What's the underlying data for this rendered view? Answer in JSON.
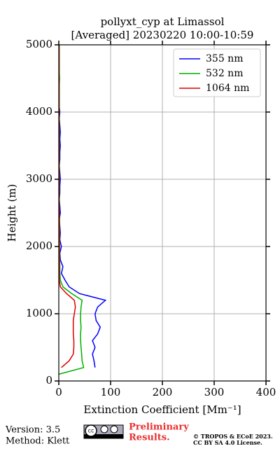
{
  "chart_data": {
    "type": "line",
    "title": "pollyxt_cyp at Limassol",
    "subtitle": "[Averaged] 20230220 10:00-10:59",
    "xlabel": "Extinction Coefficient [Mm⁻¹]",
    "ylabel": "Height (m)",
    "xlim": [
      0,
      400
    ],
    "xticks": [
      0,
      100,
      200,
      300,
      400
    ],
    "ylim": [
      0,
      5000
    ],
    "yticks": [
      0,
      1000,
      2000,
      3000,
      4000,
      5000
    ],
    "grid": true,
    "legend": "upper right",
    "y": [
      100,
      200,
      300,
      400,
      500,
      600,
      700,
      800,
      900,
      1000,
      1100,
      1200,
      1300,
      1400,
      1500,
      1600,
      1700,
      1800,
      1900,
      2000,
      2100,
      2200,
      2300,
      2400,
      2500,
      2600,
      2700,
      2800,
      2900,
      3000,
      3100,
      3200,
      3300,
      3400,
      3500,
      3600,
      3700,
      3800,
      3900,
      4000,
      4100,
      4200,
      4300,
      4400,
      4500,
      4600,
      4700,
      4800,
      4900,
      5000
    ],
    "series": [
      {
        "name": "355 nm",
        "color": "#0000ff",
        "values": [
          null,
          70,
          68,
          65,
          70,
          65,
          75,
          80,
          72,
          70,
          75,
          90,
          40,
          20,
          12,
          5,
          8,
          3,
          2,
          5,
          2,
          3,
          2,
          1,
          3,
          2,
          1,
          2,
          2,
          3,
          2,
          1,
          2,
          2,
          3,
          2,
          3,
          2,
          1,
          2,
          0.5,
          0.5,
          0.5,
          0.5,
          0.5,
          0.5,
          0.5,
          0.5,
          0.5,
          0.5
        ]
      },
      {
        "name": "532 nm",
        "color": "#00b000",
        "values": [
          0,
          48,
          45,
          44,
          43,
          42,
          42,
          43,
          42,
          42,
          43,
          45,
          25,
          8,
          3,
          2,
          2,
          1.5,
          1.5,
          1.5,
          1.5,
          1.5,
          1.5,
          1.5,
          1,
          1,
          1,
          1,
          1,
          1,
          1,
          1,
          1,
          1,
          1,
          1,
          1,
          1,
          1,
          1,
          1,
          1,
          1,
          1,
          1.5,
          1,
          1,
          1,
          1,
          1
        ]
      },
      {
        "name": "1064 nm",
        "color": "#dd0000",
        "values": [
          null,
          5,
          20,
          28,
          29,
          29,
          28,
          28,
          28,
          30,
          32,
          30,
          15,
          3,
          1,
          1,
          1,
          1,
          1,
          1,
          1,
          1,
          1,
          1,
          1,
          0.5,
          0.5,
          0.5,
          0.5,
          0.5,
          0.5,
          0.5,
          0.5,
          0.5,
          0.5,
          0.5,
          0.5,
          0.5,
          0.5,
          0.5,
          0.5,
          0.5,
          0.5,
          0.5,
          0.5,
          0.5,
          0.5,
          0.5,
          0.5,
          0.5
        ]
      }
    ]
  },
  "footer": {
    "version": "Version: 3.5",
    "method": "Method: Klett",
    "status_1": "Preliminary",
    "status_2": "Results.",
    "copyright": "© TROPOS & ECoE 2023.",
    "license": "CC BY SA 4.0 License."
  }
}
